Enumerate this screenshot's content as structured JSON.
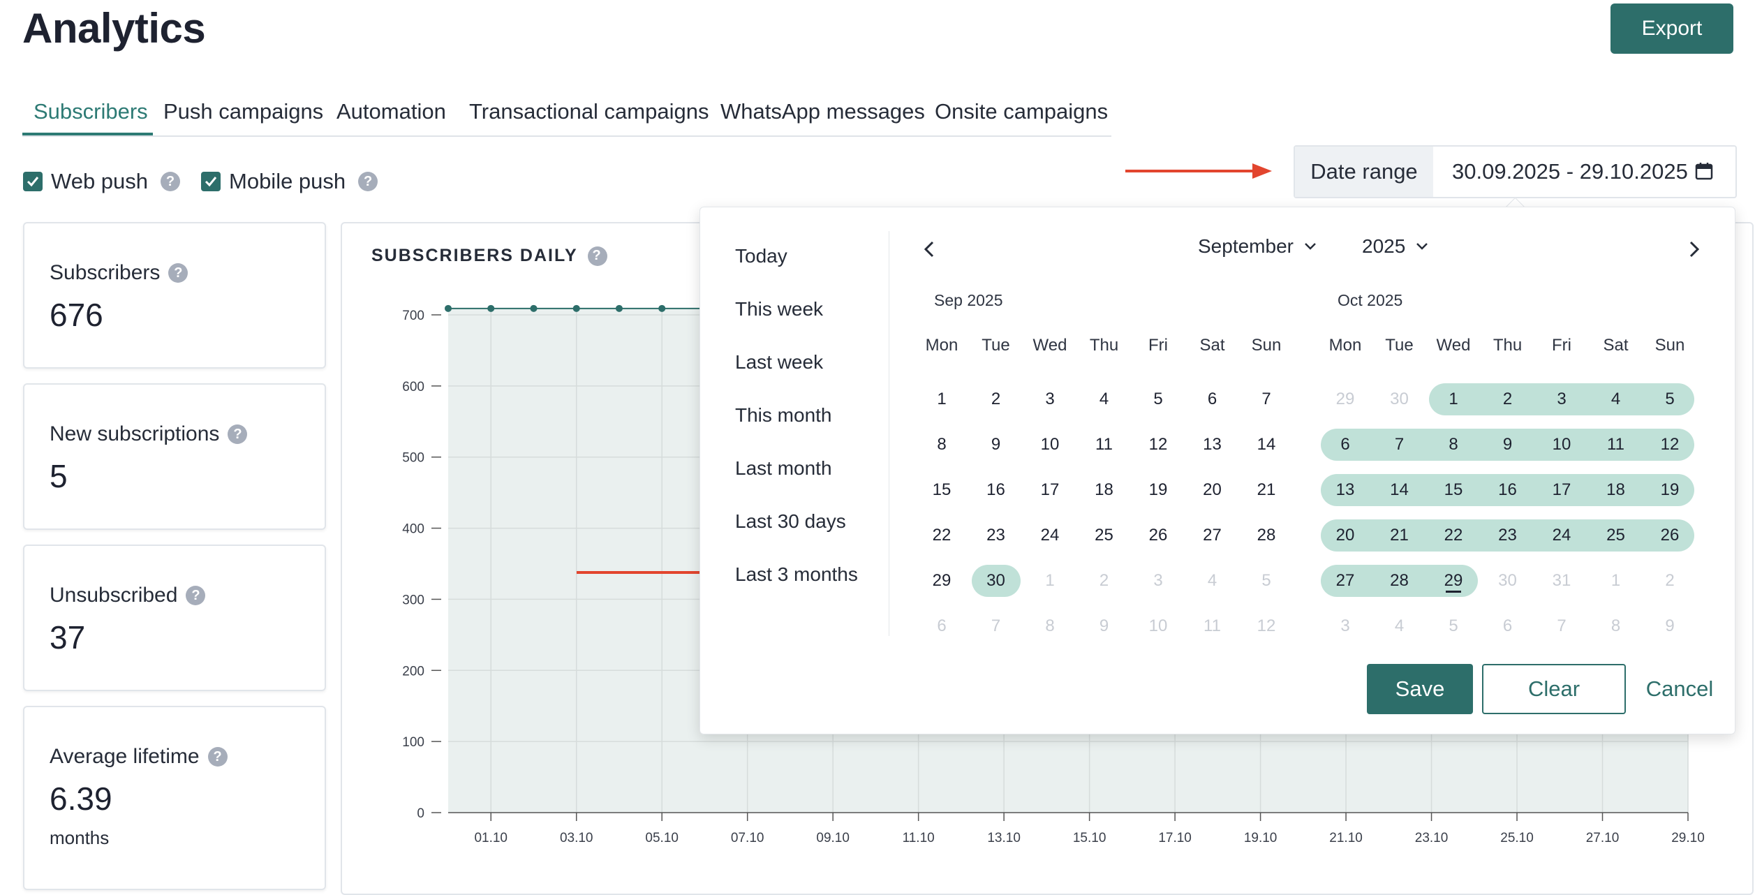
{
  "page": {
    "title": "Analytics",
    "export_label": "Export"
  },
  "tabs": [
    {
      "label": "Subscribers",
      "active": true
    },
    {
      "label": "Push campaigns"
    },
    {
      "label": "Automation"
    },
    {
      "label": "Transactional campaigns"
    },
    {
      "label": "WhatsApp messages"
    },
    {
      "label": "Onsite campaigns"
    }
  ],
  "filters": [
    {
      "label": "Web push",
      "checked": true
    },
    {
      "label": "Mobile push",
      "checked": true
    }
  ],
  "help_glyph": "?",
  "stats": [
    {
      "label": "Subscribers",
      "value": "676"
    },
    {
      "label": "New subscriptions",
      "value": "5"
    },
    {
      "label": "Unsubscribed",
      "value": "37"
    },
    {
      "label": "Average lifetime",
      "value": "6.39",
      "unit": "months"
    }
  ],
  "date_range": {
    "label": "Date range",
    "value": "30.09.2025 - 29.10.2025"
  },
  "picker": {
    "presets": [
      "Today",
      "This week",
      "Last week",
      "This month",
      "Last month",
      "Last 30 days",
      "Last 3 months"
    ],
    "month_select": "September",
    "year_select": "2025",
    "weekdays": [
      "Mon",
      "Tue",
      "Wed",
      "Thu",
      "Fri",
      "Sat",
      "Sun"
    ],
    "months": [
      {
        "label": "Sep 2025",
        "weeks": [
          [
            "1",
            "2",
            "3",
            "4",
            "5",
            "6",
            "7"
          ],
          [
            "8",
            "9",
            "10",
            "11",
            "12",
            "13",
            "14"
          ],
          [
            "15",
            "16",
            "17",
            "18",
            "19",
            "20",
            "21"
          ],
          [
            "22",
            "23",
            "24",
            "25",
            "26",
            "27",
            "28"
          ],
          [
            "29",
            "30",
            "1",
            "2",
            "3",
            "4",
            "5"
          ],
          [
            "6",
            "7",
            "8",
            "9",
            "10",
            "11",
            "12"
          ]
        ]
      },
      {
        "label": "Oct 2025",
        "weeks": [
          [
            "29",
            "30",
            "1",
            "2",
            "3",
            "4",
            "5"
          ],
          [
            "6",
            "7",
            "8",
            "9",
            "10",
            "11",
            "12"
          ],
          [
            "13",
            "14",
            "15",
            "16",
            "17",
            "18",
            "19"
          ],
          [
            "20",
            "21",
            "22",
            "23",
            "24",
            "25",
            "26"
          ],
          [
            "27",
            "28",
            "29",
            "30",
            "31",
            "1",
            "2"
          ],
          [
            "3",
            "4",
            "5",
            "6",
            "7",
            "8",
            "9"
          ]
        ]
      }
    ],
    "buttons": {
      "save": "Save",
      "clear": "Clear",
      "cancel": "Cancel"
    }
  },
  "colors": {
    "accent": "#2d6e6a",
    "range_fill": "#c0e1d8",
    "arrow": "#e2452e"
  },
  "chart_data": {
    "type": "area",
    "title": "SUBSCRIBERS DAILY",
    "xlabel": "",
    "ylabel": "",
    "ylim": [
      0,
      700
    ],
    "y_ticks": [
      0,
      100,
      200,
      300,
      400,
      500,
      600,
      700
    ],
    "x_tick_labels": [
      "01.10",
      "03.10",
      "05.10",
      "07.10",
      "09.10",
      "11.10",
      "13.10",
      "15.10",
      "17.10",
      "19.10",
      "21.10",
      "23.10",
      "25.10",
      "27.10",
      "29.10"
    ],
    "x": [
      "30.09",
      "01.10",
      "02.10",
      "03.10",
      "04.10",
      "05.10"
    ],
    "series": [
      {
        "values": [
          709,
          709,
          709,
          709,
          709,
          709
        ]
      }
    ]
  }
}
